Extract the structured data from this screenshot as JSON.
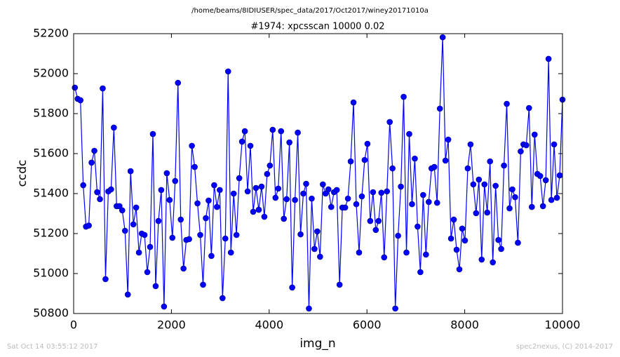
{
  "chart_data": {
    "type": "line",
    "suptitle": "/home/beams/8IDIUSER/spec_data/2017/Oct2017/winey20171010a",
    "title": "#1974: xpcsscan 10000 0.02",
    "xlabel": "img_n",
    "ylabel": "ccdc",
    "footer_left": "Sat Oct 14 03:55:12 2017",
    "footer_right": "spec2nexus, (C) 2014-2017",
    "xlim": [
      0,
      10000
    ],
    "xticks": [
      0,
      2000,
      4000,
      6000,
      8000,
      10000
    ],
    "ylim": [
      50800,
      52200
    ],
    "yticks": [
      50800,
      51000,
      51200,
      51400,
      51600,
      51800,
      52000,
      52200
    ],
    "grid": false,
    "x": [
      25,
      82,
      139,
      196,
      253,
      310,
      367,
      424,
      481,
      538,
      595,
      652,
      709,
      766,
      823,
      880,
      937,
      994,
      1051,
      1108,
      1165,
      1222,
      1279,
      1336,
      1393,
      1450,
      1507,
      1564,
      1621,
      1678,
      1735,
      1792,
      1849,
      1906,
      1963,
      2020,
      2077,
      2134,
      2191,
      2248,
      2305,
      2362,
      2419,
      2476,
      2533,
      2590,
      2647,
      2704,
      2761,
      2818,
      2875,
      2932,
      2989,
      3046,
      3103,
      3160,
      3217,
      3274,
      3331,
      3388,
      3445,
      3502,
      3559,
      3616,
      3673,
      3730,
      3787,
      3844,
      3901,
      3958,
      4015,
      4072,
      4129,
      4186,
      4243,
      4300,
      4357,
      4414,
      4471,
      4528,
      4585,
      4642,
      4699,
      4756,
      4813,
      4870,
      4927,
      4984,
      5041,
      5098,
      5155,
      5212,
      5269,
      5326,
      5383,
      5440,
      5497,
      5554,
      5611,
      5668,
      5725,
      5782,
      5839,
      5896,
      5953,
      6010,
      6067,
      6124,
      6181,
      6238,
      6295,
      6352,
      6409,
      6466,
      6523,
      6580,
      6637,
      6694,
      6751,
      6808,
      6865,
      6922,
      6979,
      7036,
      7093,
      7150,
      7207,
      7264,
      7321,
      7378,
      7435,
      7492,
      7549,
      7606,
      7663,
      7720,
      7777,
      7834,
      7891,
      7948,
      8005,
      8062,
      8119,
      8176,
      8233,
      8290,
      8347,
      8404,
      8461,
      8518,
      8575,
      8632,
      8689,
      8746,
      8803,
      8860,
      8917,
      8974,
      9031,
      9088,
      9145,
      9202,
      9259,
      9316,
      9373,
      9430,
      9487,
      9544,
      9601,
      9658,
      9715,
      9772,
      9829,
      9886,
      9943,
      10000
    ],
    "series": [
      {
        "color": "#0000ff",
        "values": [
          51930,
          51874,
          51867,
          51442,
          51235,
          51240,
          51555,
          51614,
          51407,
          51372,
          51926,
          50972,
          51411,
          51421,
          51730,
          51337,
          51337,
          51316,
          51214,
          50895,
          51512,
          51246,
          51330,
          51105,
          51200,
          51193,
          51007,
          51133,
          51698,
          50937,
          51263,
          51418,
          50835,
          51502,
          51368,
          51179,
          51463,
          51954,
          51270,
          51025,
          51168,
          51172,
          51639,
          51533,
          51351,
          51193,
          50944,
          51277,
          51365,
          51088,
          51442,
          51333,
          51418,
          50877,
          51175,
          52011,
          51105,
          51400,
          51193,
          51477,
          51660,
          51712,
          51411,
          51639,
          51309,
          51428,
          51319,
          51435,
          51284,
          51498,
          51540,
          51719,
          51379,
          51425,
          51712,
          51274,
          51372,
          51656,
          50930,
          51368,
          51705,
          51196,
          51400,
          51449,
          50825,
          51375,
          51123,
          51211,
          51084,
          51446,
          51400,
          51421,
          51333,
          51407,
          51418,
          50944,
          51330,
          51330,
          51375,
          51561,
          51856,
          51347,
          51105,
          51386,
          51568,
          51649,
          51263,
          51407,
          51218,
          51263,
          51404,
          51081,
          51411,
          51758,
          51526,
          50825,
          51189,
          51435,
          51884,
          51105,
          51698,
          51347,
          51575,
          51235,
          51007,
          51393,
          51095,
          51358,
          51526,
          51533,
          51354,
          51825,
          52182,
          51565,
          51670,
          51175,
          51270,
          51119,
          51021,
          51225,
          51165,
          51526,
          51646,
          51446,
          51302,
          51470,
          51070,
          51446,
          51305,
          51561,
          51056,
          51439,
          51168,
          51123,
          51540,
          51849,
          51326,
          51421,
          51382,
          51154,
          51611,
          51646,
          51642,
          51828,
          51333,
          51695,
          51498,
          51488,
          51337,
          51467,
          52074,
          51368,
          51646,
          51379,
          51491,
          51870
        ]
      }
    ]
  }
}
